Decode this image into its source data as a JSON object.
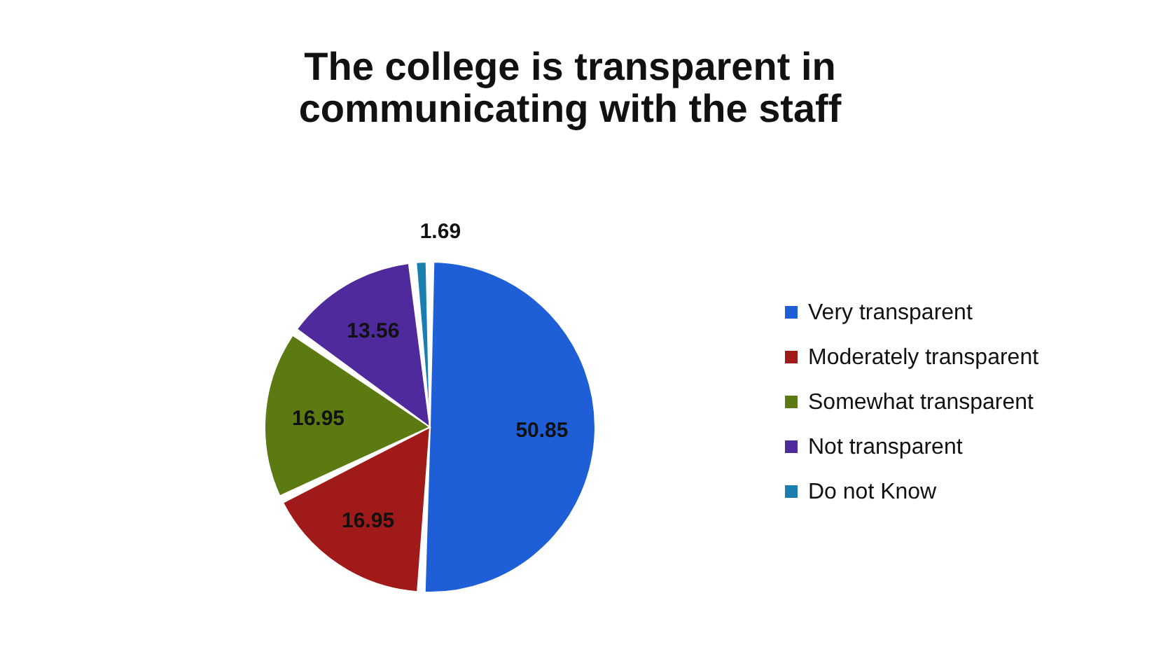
{
  "chart_data": {
    "type": "pie",
    "title": "The college is transparent in communicating with the staff",
    "categories": [
      "Very transparent",
      "Moderately transparent",
      "Somewhat transparent",
      "Not transparent",
      "Do not Know"
    ],
    "values": [
      50.85,
      16.95,
      16.95,
      13.56,
      1.69
    ],
    "colors": [
      "#1e5fd8",
      "#a11a1a",
      "#5b7a12",
      "#4f2a9c",
      "#1a7fb0"
    ],
    "data_labels": true,
    "legend": "right"
  }
}
